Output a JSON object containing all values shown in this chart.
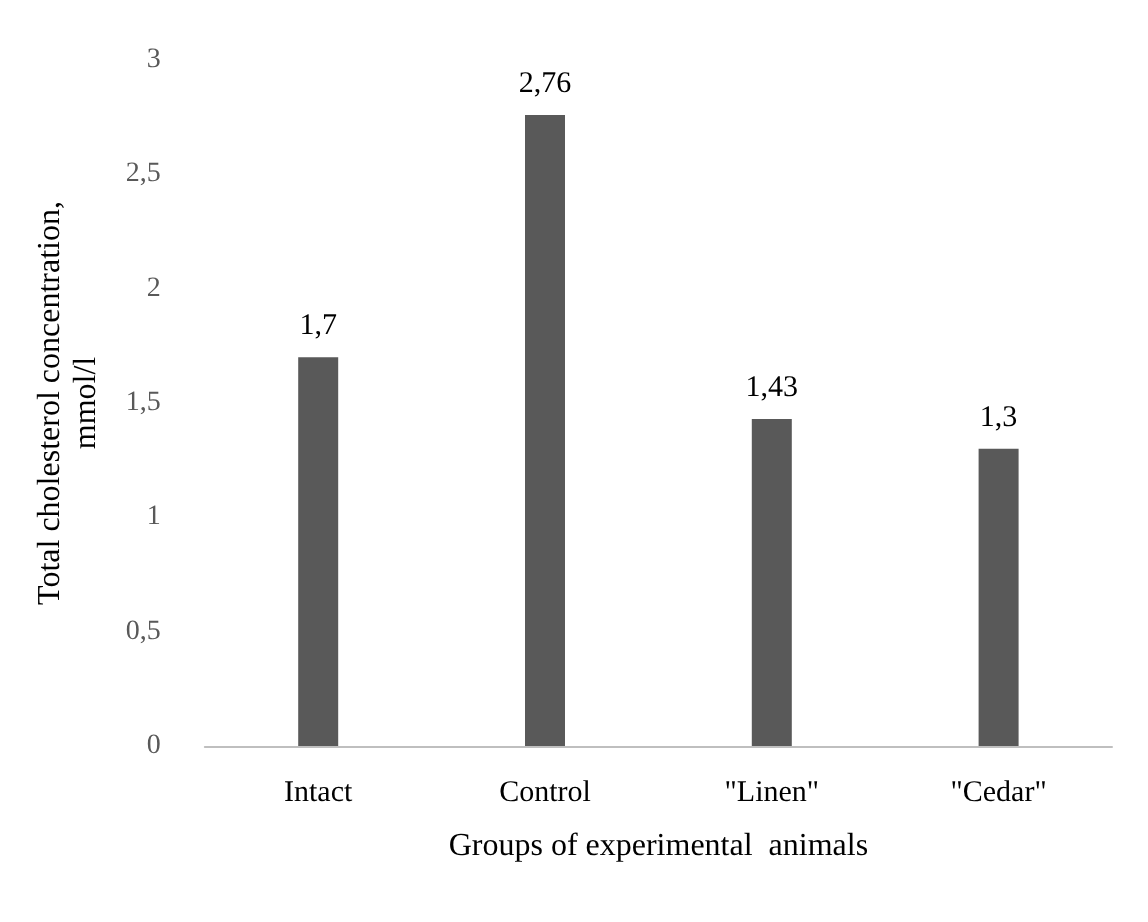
{
  "chart_data": {
    "type": "bar",
    "xlabel": "Groups of experimental  animals",
    "ylabel": "Total cholesterol concentration,\nmmol/l",
    "categories": [
      "Intact",
      "Control",
      "\"Linen\"",
      "\"Cedar\""
    ],
    "values": [
      1.7,
      2.76,
      1.43,
      1.3
    ],
    "value_labels": [
      "1,7",
      "2,76",
      "1,43",
      "1,3"
    ],
    "color": "#595959",
    "ylim": [
      0,
      3
    ],
    "yticks": [
      0,
      {
        "value": 0.5,
        "label": "0,5"
      },
      1,
      {
        "value": 1.5,
        "label": "1,5"
      },
      2,
      {
        "value": 2.5,
        "label": "2,5"
      },
      3
    ],
    "grid": false
  }
}
